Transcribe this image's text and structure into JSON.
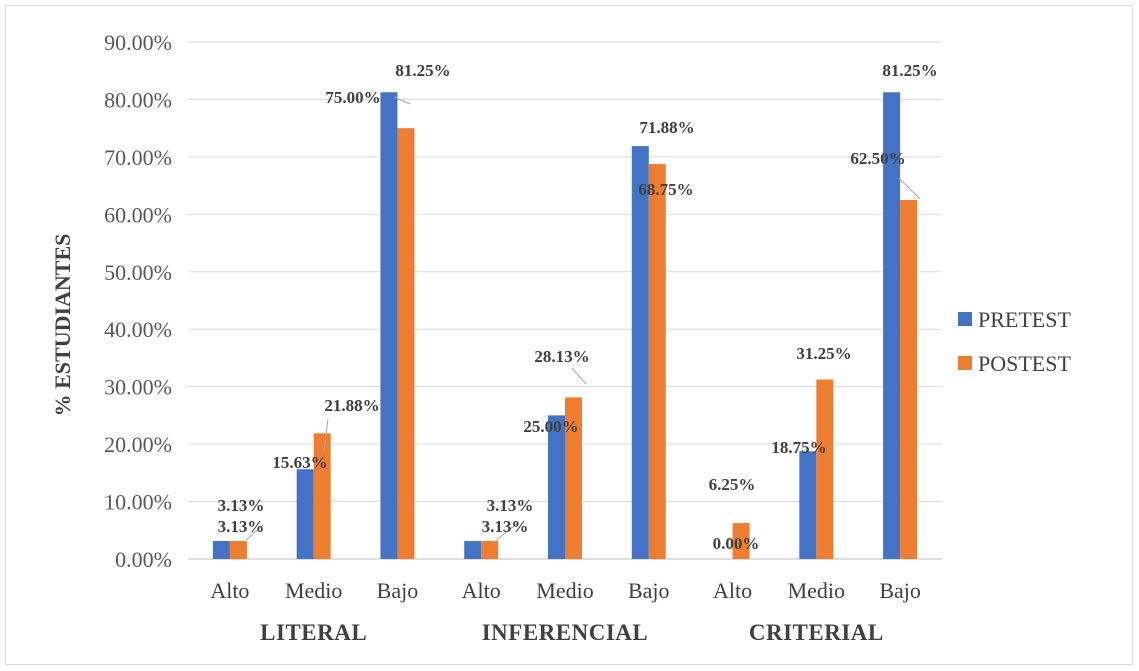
{
  "chart_data": {
    "type": "bar",
    "ylabel": "% ESTUDIANTES",
    "ylim": [
      0,
      90
    ],
    "ytick_step": 10,
    "ytick_labels": [
      "0.00%",
      "10.00%",
      "20.00%",
      "30.00%",
      "40.00%",
      "50.00%",
      "60.00%",
      "70.00%",
      "80.00%",
      "90.00%"
    ],
    "grid": true,
    "legend_position": "right",
    "groups": [
      "LITERAL",
      "INFERENCIAL",
      "CRITERIAL"
    ],
    "categories": [
      "Alto",
      "Medio",
      "Bajo",
      "Alto",
      "Medio",
      "Bajo",
      "Alto",
      "Medio",
      "Bajo"
    ],
    "series": [
      {
        "name": "PRETEST",
        "color": "#4472c4",
        "values": [
          3.13,
          15.63,
          81.25,
          3.13,
          25.0,
          71.88,
          0.0,
          18.75,
          81.25
        ],
        "labels": [
          "3.13%",
          "15.63%",
          "81.25%",
          "3.13%",
          "25.00%",
          "71.88%",
          "0.00%",
          "18.75%",
          "81.25%"
        ]
      },
      {
        "name": "POSTEST",
        "color": "#ed7d31",
        "values": [
          3.13,
          21.88,
          75.0,
          3.13,
          28.13,
          68.75,
          6.25,
          31.25,
          62.5
        ],
        "labels": [
          "3.13%",
          "21.88%",
          "75.00%",
          "3.13%",
          "28.13%",
          "68.75%",
          "6.25%",
          "31.25%",
          "62.50%"
        ]
      }
    ]
  }
}
